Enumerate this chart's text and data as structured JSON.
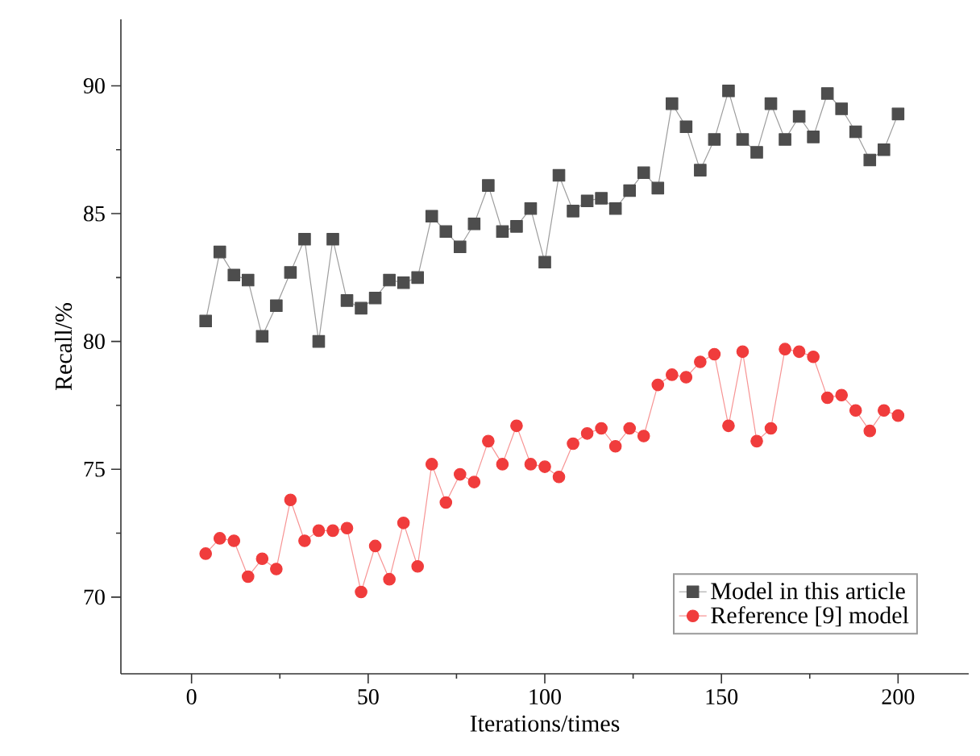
{
  "chart_data": {
    "type": "line",
    "xlabel": "Iterations/times",
    "ylabel": "Recall/%",
    "x": [
      4,
      8,
      12,
      16,
      20,
      24,
      28,
      32,
      36,
      40,
      44,
      48,
      52,
      56,
      60,
      64,
      68,
      72,
      76,
      80,
      84,
      88,
      92,
      96,
      100,
      104,
      108,
      112,
      116,
      120,
      124,
      128,
      132,
      136,
      140,
      144,
      148,
      152,
      156,
      160,
      164,
      168,
      172,
      176,
      180,
      184,
      188,
      192,
      196,
      200
    ],
    "series": [
      {
        "name": "Model in this article",
        "color": "#4d4d4d",
        "marker": "square",
        "values": [
          80.8,
          83.5,
          82.6,
          82.4,
          80.2,
          81.4,
          82.7,
          84.0,
          80.0,
          84.0,
          81.6,
          81.3,
          81.7,
          82.4,
          82.3,
          82.5,
          84.9,
          84.3,
          83.7,
          84.6,
          86.1,
          84.3,
          84.5,
          85.2,
          83.1,
          86.5,
          85.1,
          85.5,
          85.6,
          85.2,
          85.9,
          86.6,
          86.0,
          89.3,
          88.4,
          86.7,
          87.9,
          89.8,
          87.9,
          87.4,
          89.3,
          87.9,
          88.8,
          88.0,
          89.7,
          89.1,
          88.2,
          87.1,
          87.5,
          88.9
        ]
      },
      {
        "name": "Reference [9] model",
        "color": "#f03c3c",
        "marker": "circle",
        "values": [
          71.7,
          72.3,
          72.2,
          70.8,
          71.5,
          71.1,
          73.8,
          72.2,
          72.6,
          72.6,
          72.7,
          70.2,
          72.0,
          70.7,
          72.9,
          71.2,
          75.2,
          73.7,
          74.8,
          74.5,
          76.1,
          75.2,
          76.7,
          75.2,
          75.1,
          74.7,
          76.0,
          76.4,
          76.6,
          75.9,
          76.6,
          76.3,
          78.3,
          78.7,
          78.6,
          79.2,
          79.5,
          76.7,
          79.6,
          76.1,
          76.6,
          79.7,
          79.6,
          79.4,
          77.8,
          77.9,
          77.3,
          76.5,
          77.3,
          77.1
        ]
      }
    ],
    "xlim": [
      -20,
      220
    ],
    "ylim": [
      67,
      92.6
    ],
    "xticks": [
      0,
      50,
      100,
      150,
      200
    ],
    "yticks": [
      70,
      75,
      80,
      85,
      90
    ],
    "legend": "bottom right",
    "grid": false
  }
}
